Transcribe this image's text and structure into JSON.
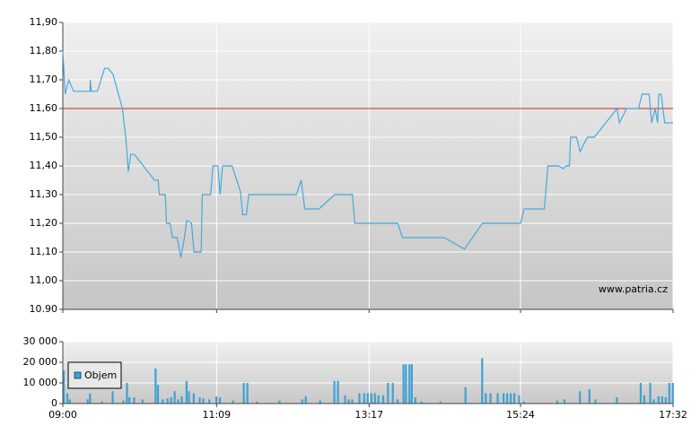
{
  "chart_data": [
    {
      "type": "line",
      "x": [
        "09:00",
        "09:02",
        "09:05",
        "09:09",
        "09:23",
        "09:23",
        "09:24",
        "09:29",
        "09:35",
        "09:38",
        "09:42",
        "09:50",
        "09:53",
        "09:55",
        "09:57",
        "10:00",
        "10:17",
        "10:20",
        "10:21",
        "10:26",
        "10:27",
        "10:30",
        "10:32",
        "10:36",
        "10:39",
        "10:42",
        "10:44",
        "10:48",
        "10:50",
        "10:56",
        "10:57",
        "11:04",
        "11:06",
        "11:10",
        "11:12",
        "11:14",
        "11:22",
        "11:29",
        "11:31",
        "11:34",
        "11:36",
        "12:16",
        "12:20",
        "12:23",
        "12:35",
        "12:48",
        "13:03",
        "13:05",
        "13:41",
        "13:45",
        "14:20",
        "14:37",
        "14:52",
        "15:24",
        "15:27",
        "15:44",
        "15:47",
        "15:56",
        "16:00",
        "16:02",
        "16:05",
        "16:06",
        "16:11",
        "16:14",
        "16:20",
        "16:26",
        "16:45",
        "16:47",
        "16:53",
        "17:03",
        "17:06",
        "17:12",
        "17:14",
        "17:17",
        "17:19",
        "17:20",
        "17:22",
        "17:25",
        "17:32"
      ],
      "values": [
        11.8,
        11.65,
        11.7,
        11.66,
        11.66,
        11.7,
        11.66,
        11.66,
        11.74,
        11.74,
        11.72,
        11.6,
        11.49,
        11.38,
        11.44,
        11.44,
        11.35,
        11.35,
        11.3,
        11.3,
        11.2,
        11.2,
        11.15,
        11.15,
        11.08,
        11.15,
        11.21,
        11.2,
        11.1,
        11.1,
        11.3,
        11.3,
        11.4,
        11.4,
        11.3,
        11.4,
        11.4,
        11.31,
        11.23,
        11.23,
        11.3,
        11.3,
        11.35,
        11.25,
        11.25,
        11.3,
        11.3,
        11.2,
        11.2,
        11.15,
        11.15,
        11.11,
        11.2,
        11.2,
        11.25,
        11.25,
        11.4,
        11.4,
        11.39,
        11.4,
        11.4,
        11.5,
        11.5,
        11.45,
        11.5,
        11.5,
        11.6,
        11.55,
        11.6,
        11.6,
        11.65,
        11.65,
        11.55,
        11.6,
        11.55,
        11.65,
        11.65,
        11.55,
        11.55
      ],
      "color": "#4aa8d8",
      "xlim": [
        "09:00",
        "17:32"
      ],
      "ylim": [
        10.9,
        11.9
      ],
      "yticks": [
        {
          "value": 10.9,
          "label": "10.90"
        },
        {
          "value": 11.0,
          "label": "11,00"
        },
        {
          "value": 11.1,
          "label": "11,10"
        },
        {
          "value": 11.2,
          "label": "11,20"
        },
        {
          "value": 11.3,
          "label": "11,30"
        },
        {
          "value": 11.4,
          "label": "11,40"
        },
        {
          "value": 11.5,
          "label": "11,50"
        },
        {
          "value": 11.6,
          "label": "11,60"
        },
        {
          "value": 11.7,
          "label": "11,70"
        },
        {
          "value": 11.8,
          "label": "11,80"
        },
        {
          "value": 11.9,
          "label": "11,90"
        }
      ],
      "reference_line": {
        "value": 11.6,
        "color": "#cc2222"
      },
      "grid": true,
      "annotation": "www.patria.cz"
    },
    {
      "type": "bar",
      "x": [
        "09:00",
        "09:03",
        "09:05",
        "09:20",
        "09:22",
        "09:32",
        "09:41",
        "09:50",
        "09:53",
        "09:55",
        "09:59",
        "10:06",
        "10:17",
        "10:19",
        "10:23",
        "10:27",
        "10:30",
        "10:33",
        "10:36",
        "10:39",
        "10:43",
        "10:45",
        "10:49",
        "10:54",
        "10:57",
        "11:02",
        "11:08",
        "11:11",
        "11:22",
        "11:31",
        "11:34",
        "11:42",
        "12:01",
        "12:20",
        "12:23",
        "12:35",
        "12:47",
        "12:50",
        "12:56",
        "12:59",
        "13:02",
        "13:08",
        "13:12",
        "13:15",
        "13:18",
        "13:21",
        "13:24",
        "13:28",
        "13:32",
        "13:36",
        "13:40",
        "13:45",
        "13:47",
        "13:50",
        "13:52",
        "13:55",
        "14:00",
        "14:16",
        "14:37",
        "14:51",
        "14:54",
        "14:58",
        "15:04",
        "15:09",
        "15:12",
        "15:15",
        "15:18",
        "15:22",
        "15:26",
        "15:54",
        "16:00",
        "16:13",
        "16:21",
        "16:26",
        "16:44",
        "17:04",
        "17:07",
        "17:12",
        "17:15",
        "17:19",
        "17:22",
        "17:25",
        "17:28",
        "17:31"
      ],
      "series": [
        {
          "name": "Objem",
          "color": "#3fa2d2",
          "values": [
            16000,
            5000,
            2000,
            2000,
            5000,
            1000,
            6000,
            1500,
            10000,
            3000,
            3000,
            2000,
            17000,
            9000,
            2000,
            2500,
            3000,
            6000,
            2000,
            3500,
            11000,
            6000,
            5000,
            3000,
            2500,
            2000,
            3500,
            3000,
            1500,
            10000,
            10000,
            1000,
            1500,
            2000,
            3500,
            1500,
            11000,
            11000,
            4000,
            2000,
            2000,
            5000,
            5000,
            5000,
            5000,
            5000,
            4000,
            4000,
            10000,
            10000,
            2000,
            19000,
            19000,
            19000,
            19000,
            3000,
            1000,
            1000,
            8000,
            22000,
            5000,
            5000,
            5000,
            5000,
            5000,
            5000,
            5000,
            4000,
            1000,
            1500,
            2000,
            6000,
            7000,
            2000,
            3000,
            10000,
            4000,
            10000,
            2000,
            3500,
            3500,
            3000,
            10000,
            10000
          ]
        }
      ],
      "xlim": [
        "09:00",
        "17:32"
      ],
      "xticks": [
        "09:00",
        "11:09",
        "13:17",
        "15:24",
        "17:32"
      ],
      "ylim": [
        0,
        30000
      ],
      "yticks": [
        0,
        {
          "value": 10000,
          "label": "10 000"
        },
        {
          "value": 20000,
          "label": "20 000"
        },
        {
          "value": 30000,
          "label": "30 000"
        }
      ],
      "grid": true
    }
  ]
}
